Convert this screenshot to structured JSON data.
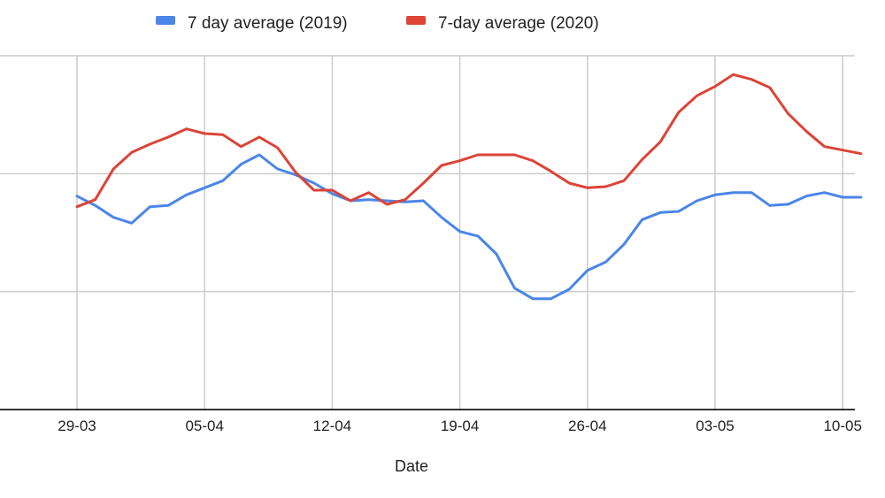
{
  "chart_data": {
    "type": "line",
    "title": "",
    "xlabel": "Date",
    "ylabel": "",
    "legend_position": "top",
    "grid": true,
    "x_tick_labels": [
      "29-03",
      "05-04",
      "12-04",
      "19-04",
      "26-04",
      "03-05",
      "10-05"
    ],
    "x": [
      "29-03",
      "30-03",
      "31-03",
      "01-04",
      "02-04",
      "03-04",
      "04-04",
      "05-04",
      "06-04",
      "07-04",
      "08-04",
      "09-04",
      "10-04",
      "11-04",
      "12-04",
      "13-04",
      "14-04",
      "15-04",
      "16-04",
      "17-04",
      "18-04",
      "19-04",
      "20-04",
      "21-04",
      "22-04",
      "23-04",
      "24-04",
      "25-04",
      "26-04",
      "27-04",
      "28-04",
      "29-04",
      "30-04",
      "01-05",
      "02-05",
      "03-05",
      "04-05",
      "05-05",
      "06-05",
      "07-05",
      "08-05",
      "09-05",
      "10-05",
      "11-05"
    ],
    "ylim": [
      0,
      3
    ],
    "y_gridlines": [
      1,
      2,
      3
    ],
    "series": [
      {
        "name": "7 day average (2019)",
        "color": "#4a86e8",
        "values": [
          1.81,
          1.73,
          1.63,
          1.58,
          1.72,
          1.73,
          1.82,
          1.88,
          1.94,
          2.08,
          2.16,
          2.04,
          1.99,
          1.92,
          1.83,
          1.77,
          1.78,
          1.77,
          1.76,
          1.77,
          1.63,
          1.51,
          1.47,
          1.32,
          1.03,
          0.94,
          0.94,
          1.02,
          1.18,
          1.25,
          1.4,
          1.61,
          1.67,
          1.68,
          1.77,
          1.82,
          1.84,
          1.84,
          1.73,
          1.74,
          1.81,
          1.84,
          1.8,
          1.8
        ]
      },
      {
        "name": "7-day average (2020)",
        "color": "#db4437",
        "values": [
          1.72,
          1.78,
          2.04,
          2.18,
          2.25,
          2.31,
          2.38,
          2.34,
          2.33,
          2.23,
          2.31,
          2.22,
          2.01,
          1.86,
          1.86,
          1.77,
          1.84,
          1.74,
          1.78,
          1.92,
          2.07,
          2.11,
          2.16,
          2.16,
          2.16,
          2.11,
          2.02,
          1.92,
          1.88,
          1.89,
          1.94,
          2.12,
          2.27,
          2.52,
          2.66,
          2.74,
          2.84,
          2.8,
          2.73,
          2.51,
          2.36,
          2.23,
          2.2,
          2.17
        ]
      }
    ]
  }
}
